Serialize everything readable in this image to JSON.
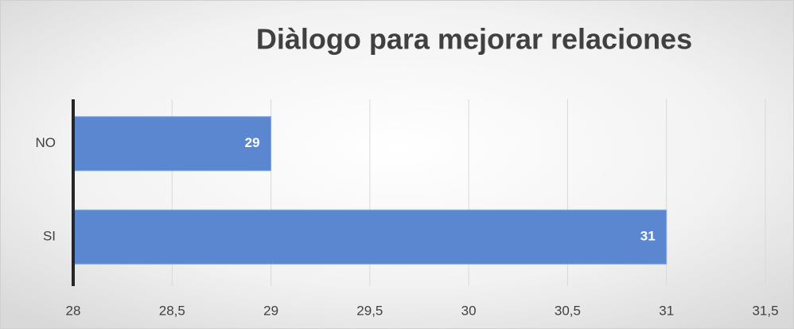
{
  "chart_data": {
    "type": "bar",
    "orientation": "horizontal",
    "title": "Diàlogo para mejorar relaciones",
    "categories": [
      "NO",
      "SI"
    ],
    "values": [
      29,
      31
    ],
    "color": "#5b87d1",
    "xlim": [
      28,
      31.5
    ],
    "xticks": [
      28,
      {
        "value": 28.5,
        "label": "28,5"
      },
      29,
      {
        "value": 29.5,
        "label": "29,5"
      },
      30,
      {
        "value": 30.5,
        "label": "30,5"
      },
      31,
      {
        "value": 31.5,
        "label": "31,5"
      }
    ],
    "grid": true
  }
}
